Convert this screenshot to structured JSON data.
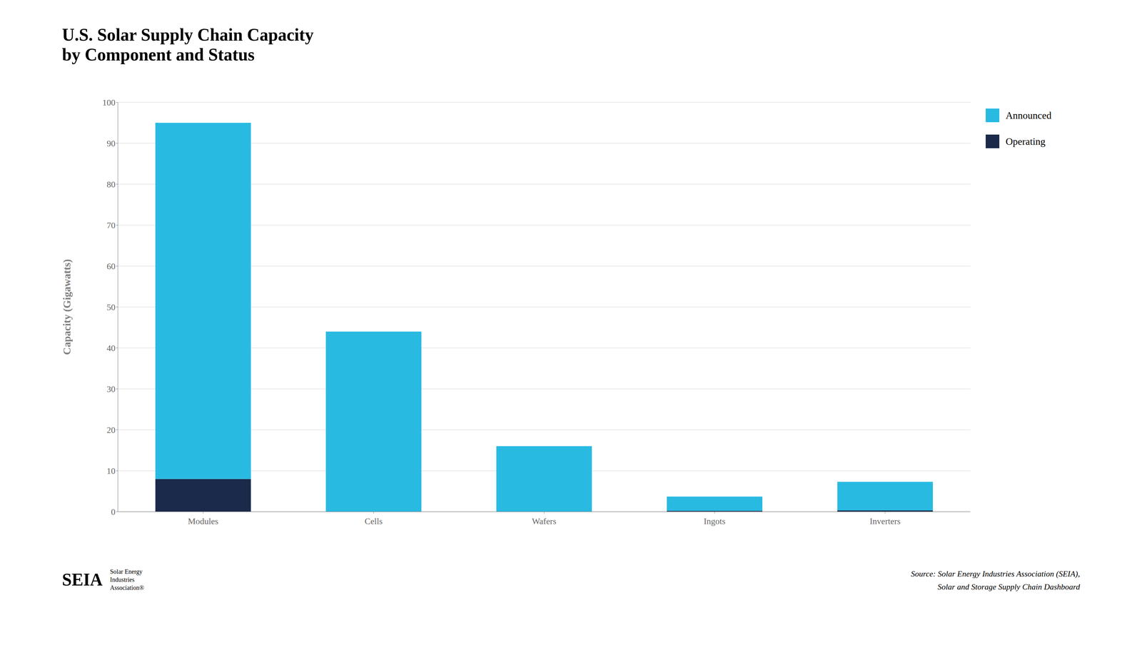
{
  "chart_data": {
    "type": "bar",
    "title": "U.S. Solar Supply Chain Capacity\nby Component and Status",
    "ylabel": "Capacity (Gigawatts)",
    "categories": [
      "Modules",
      "Cells",
      "Wafers",
      "Ingots",
      "Inverters"
    ],
    "series": [
      {
        "name": "Operating",
        "color": "#1B2A4A",
        "values": [
          8.0,
          0.0,
          0.0,
          0.2,
          0.3
        ]
      },
      {
        "name": "Announced",
        "color": "#29BAE2",
        "values": [
          87.0,
          44.0,
          16.0,
          3.5,
          7.0
        ]
      }
    ],
    "stacked": true,
    "ylim": [
      0,
      100
    ],
    "yticks": [
      0,
      10,
      20,
      30,
      40,
      50,
      60,
      70,
      80,
      90,
      100
    ],
    "grid": true,
    "legend": "upper right",
    "annotations": [
      "Source: Solar Energy Industries Association (SEIA),\nSolar and Storage Supply Chain Dashboard",
      "SEIA",
      "Solar Energy",
      "Industries",
      "Association®"
    ]
  }
}
